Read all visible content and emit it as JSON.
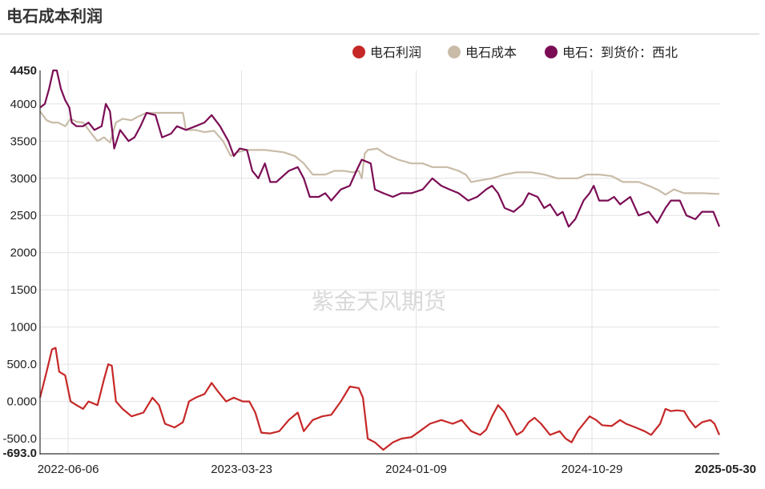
{
  "header": {
    "title": "电石成本利润"
  },
  "watermark": "紫金天风期货",
  "chart_data": {
    "type": "line",
    "title": "电石成本利润",
    "x_tick_labels": [
      "2022-06-06",
      "2023-03-23",
      "2024-01-09",
      "2024-10-29",
      "2025-05-30"
    ],
    "y_tick_labels": [
      "4450",
      "4000",
      "3500",
      "3000",
      "2500",
      "2000",
      "1500",
      "1000",
      "500.0",
      "0.000",
      "-500.0",
      "-693.0"
    ],
    "ylim": [
      -693,
      4450
    ],
    "xlim": [
      "2022-04-20",
      "2025-05-30"
    ],
    "grid": true,
    "legend_position": "top-right",
    "series": [
      {
        "name": "电石利润",
        "color": "#c62828",
        "points": [
          [
            "2022-04-20",
            50
          ],
          [
            "2022-05-01",
            400
          ],
          [
            "2022-05-10",
            700
          ],
          [
            "2022-05-16",
            720
          ],
          [
            "2022-05-22",
            400
          ],
          [
            "2022-06-01",
            350
          ],
          [
            "2022-06-10",
            0
          ],
          [
            "2022-06-20",
            -50
          ],
          [
            "2022-07-01",
            -100
          ],
          [
            "2022-07-10",
            0
          ],
          [
            "2022-07-25",
            -50
          ],
          [
            "2022-08-05",
            300
          ],
          [
            "2022-08-12",
            500
          ],
          [
            "2022-08-18",
            480
          ],
          [
            "2022-08-25",
            0
          ],
          [
            "2022-09-05",
            -100
          ],
          [
            "2022-09-20",
            -200
          ],
          [
            "2022-10-10",
            -150
          ],
          [
            "2022-10-25",
            50
          ],
          [
            "2022-11-05",
            -50
          ],
          [
            "2022-11-15",
            -300
          ],
          [
            "2022-12-01",
            -350
          ],
          [
            "2022-12-15",
            -280
          ],
          [
            "2022-12-25",
            0
          ],
          [
            "2023-01-05",
            50
          ],
          [
            "2023-01-20",
            100
          ],
          [
            "2023-02-01",
            250
          ],
          [
            "2023-02-10",
            150
          ],
          [
            "2023-02-25",
            0
          ],
          [
            "2023-03-10",
            50
          ],
          [
            "2023-03-25",
            0
          ],
          [
            "2023-04-05",
            0
          ],
          [
            "2023-04-15",
            -150
          ],
          [
            "2023-04-25",
            -420
          ],
          [
            "2023-05-10",
            -430
          ],
          [
            "2023-05-25",
            -400
          ],
          [
            "2023-06-10",
            -250
          ],
          [
            "2023-06-25",
            -150
          ],
          [
            "2023-07-05",
            -400
          ],
          [
            "2023-07-20",
            -250
          ],
          [
            "2023-08-05",
            -200
          ],
          [
            "2023-08-20",
            -180
          ],
          [
            "2023-09-05",
            0
          ],
          [
            "2023-09-20",
            200
          ],
          [
            "2023-10-05",
            180
          ],
          [
            "2023-10-12",
            50
          ],
          [
            "2023-10-20",
            -500
          ],
          [
            "2023-11-01",
            -550
          ],
          [
            "2023-11-15",
            -650
          ],
          [
            "2023-12-01",
            -550
          ],
          [
            "2023-12-15",
            -500
          ],
          [
            "2024-01-01",
            -480
          ],
          [
            "2024-01-15",
            -400
          ],
          [
            "2024-02-01",
            -300
          ],
          [
            "2024-02-20",
            -250
          ],
          [
            "2024-03-10",
            -300
          ],
          [
            "2024-03-25",
            -250
          ],
          [
            "2024-04-10",
            -400
          ],
          [
            "2024-04-25",
            -450
          ],
          [
            "2024-05-05",
            -380
          ],
          [
            "2024-05-15",
            -200
          ],
          [
            "2024-05-25",
            -50
          ],
          [
            "2024-06-05",
            -150
          ],
          [
            "2024-06-15",
            -300
          ],
          [
            "2024-06-25",
            -450
          ],
          [
            "2024-07-05",
            -400
          ],
          [
            "2024-07-15",
            -280
          ],
          [
            "2024-07-25",
            -220
          ],
          [
            "2024-08-05",
            -300
          ],
          [
            "2024-08-20",
            -450
          ],
          [
            "2024-09-05",
            -400
          ],
          [
            "2024-09-15",
            -500
          ],
          [
            "2024-09-25",
            -550
          ],
          [
            "2024-10-05",
            -400
          ],
          [
            "2024-10-15",
            -300
          ],
          [
            "2024-10-25",
            -200
          ],
          [
            "2024-11-05",
            -250
          ],
          [
            "2024-11-15",
            -320
          ],
          [
            "2024-12-01",
            -330
          ],
          [
            "2024-12-15",
            -250
          ],
          [
            "2024-12-25",
            -300
          ],
          [
            "2025-01-10",
            -350
          ],
          [
            "2025-01-25",
            -400
          ],
          [
            "2025-02-05",
            -450
          ],
          [
            "2025-02-20",
            -300
          ],
          [
            "2025-03-01",
            -100
          ],
          [
            "2025-03-10",
            -130
          ],
          [
            "2025-03-20",
            -120
          ],
          [
            "2025-04-01",
            -130
          ],
          [
            "2025-04-10",
            -250
          ],
          [
            "2025-04-20",
            -350
          ],
          [
            "2025-05-01",
            -280
          ],
          [
            "2025-05-15",
            -250
          ],
          [
            "2025-05-22",
            -300
          ],
          [
            "2025-05-30",
            -450
          ]
        ]
      },
      {
        "name": "电石成本",
        "color": "#c8bca8",
        "points": [
          [
            "2022-04-20",
            3900
          ],
          [
            "2022-05-01",
            3780
          ],
          [
            "2022-05-10",
            3750
          ],
          [
            "2022-05-20",
            3750
          ],
          [
            "2022-06-01",
            3700
          ],
          [
            "2022-06-10",
            3800
          ],
          [
            "2022-06-20",
            3760
          ],
          [
            "2022-07-01",
            3750
          ],
          [
            "2022-07-15",
            3600
          ],
          [
            "2022-07-25",
            3500
          ],
          [
            "2022-08-05",
            3550
          ],
          [
            "2022-08-15",
            3480
          ],
          [
            "2022-08-25",
            3750
          ],
          [
            "2022-09-05",
            3800
          ],
          [
            "2022-09-20",
            3780
          ],
          [
            "2022-10-01",
            3830
          ],
          [
            "2022-10-15",
            3880
          ],
          [
            "2022-11-01",
            3880
          ],
          [
            "2022-11-20",
            3880
          ],
          [
            "2022-12-05",
            3880
          ],
          [
            "2022-12-15",
            3880
          ],
          [
            "2022-12-20",
            3650
          ],
          [
            "2023-01-05",
            3650
          ],
          [
            "2023-01-20",
            3620
          ],
          [
            "2023-02-05",
            3640
          ],
          [
            "2023-02-20",
            3500
          ],
          [
            "2023-03-05",
            3300
          ],
          [
            "2023-03-15",
            3350
          ],
          [
            "2023-04-01",
            3380
          ],
          [
            "2023-05-01",
            3380
          ],
          [
            "2023-06-01",
            3350
          ],
          [
            "2023-06-20",
            3300
          ],
          [
            "2023-07-05",
            3200
          ],
          [
            "2023-07-20",
            3050
          ],
          [
            "2023-08-10",
            3050
          ],
          [
            "2023-08-25",
            3100
          ],
          [
            "2023-09-10",
            3100
          ],
          [
            "2023-09-25",
            3080
          ],
          [
            "2023-10-05",
            3100
          ],
          [
            "2023-10-10",
            3000
          ],
          [
            "2023-10-15",
            3330
          ],
          [
            "2023-10-20",
            3380
          ],
          [
            "2023-11-05",
            3400
          ],
          [
            "2023-11-20",
            3320
          ],
          [
            "2023-12-10",
            3250
          ],
          [
            "2024-01-01",
            3200
          ],
          [
            "2024-01-20",
            3200
          ],
          [
            "2024-02-05",
            3150
          ],
          [
            "2024-03-01",
            3150
          ],
          [
            "2024-03-20",
            3100
          ],
          [
            "2024-04-01",
            3050
          ],
          [
            "2024-04-10",
            2950
          ],
          [
            "2024-05-01",
            2980
          ],
          [
            "2024-05-15",
            3000
          ],
          [
            "2024-06-05",
            3050
          ],
          [
            "2024-06-25",
            3080
          ],
          [
            "2024-07-20",
            3080
          ],
          [
            "2024-08-10",
            3050
          ],
          [
            "2024-09-01",
            3000
          ],
          [
            "2024-09-20",
            3000
          ],
          [
            "2024-10-05",
            3000
          ],
          [
            "2024-10-20",
            3050
          ],
          [
            "2024-11-10",
            3050
          ],
          [
            "2024-12-01",
            3030
          ],
          [
            "2024-12-20",
            2950
          ],
          [
            "2025-01-15",
            2950
          ],
          [
            "2025-02-01",
            2900
          ],
          [
            "2025-02-15",
            2850
          ],
          [
            "2025-03-01",
            2780
          ],
          [
            "2025-03-15",
            2850
          ],
          [
            "2025-04-01",
            2800
          ],
          [
            "2025-05-01",
            2800
          ],
          [
            "2025-05-30",
            2790
          ]
        ]
      },
      {
        "name": "电石：到货价：西北",
        "color": "#7b0d55",
        "points": [
          [
            "2022-04-20",
            3950
          ],
          [
            "2022-04-28",
            4000
          ],
          [
            "2022-05-05",
            4200
          ],
          [
            "2022-05-12",
            4450
          ],
          [
            "2022-05-18",
            4450
          ],
          [
            "2022-05-25",
            4200
          ],
          [
            "2022-06-01",
            4050
          ],
          [
            "2022-06-08",
            3950
          ],
          [
            "2022-06-12",
            3750
          ],
          [
            "2022-06-20",
            3700
          ],
          [
            "2022-07-01",
            3700
          ],
          [
            "2022-07-10",
            3750
          ],
          [
            "2022-07-20",
            3650
          ],
          [
            "2022-08-01",
            3700
          ],
          [
            "2022-08-08",
            4000
          ],
          [
            "2022-08-15",
            3900
          ],
          [
            "2022-08-22",
            3400
          ],
          [
            "2022-09-01",
            3650
          ],
          [
            "2022-09-15",
            3500
          ],
          [
            "2022-09-25",
            3550
          ],
          [
            "2022-10-05",
            3700
          ],
          [
            "2022-10-15",
            3880
          ],
          [
            "2022-10-30",
            3850
          ],
          [
            "2022-11-10",
            3550
          ],
          [
            "2022-11-25",
            3600
          ],
          [
            "2022-12-05",
            3700
          ],
          [
            "2022-12-20",
            3650
          ],
          [
            "2023-01-05",
            3700
          ],
          [
            "2023-01-20",
            3750
          ],
          [
            "2023-02-01",
            3850
          ],
          [
            "2023-02-15",
            3700
          ],
          [
            "2023-03-01",
            3500
          ],
          [
            "2023-03-10",
            3300
          ],
          [
            "2023-03-20",
            3400
          ],
          [
            "2023-04-01",
            3380
          ],
          [
            "2023-04-10",
            3100
          ],
          [
            "2023-04-20",
            3000
          ],
          [
            "2023-05-01",
            3200
          ],
          [
            "2023-05-10",
            2950
          ],
          [
            "2023-05-20",
            2950
          ],
          [
            "2023-06-10",
            3100
          ],
          [
            "2023-06-25",
            3150
          ],
          [
            "2023-07-05",
            3000
          ],
          [
            "2023-07-15",
            2750
          ],
          [
            "2023-07-30",
            2750
          ],
          [
            "2023-08-10",
            2800
          ],
          [
            "2023-08-20",
            2700
          ],
          [
            "2023-09-05",
            2850
          ],
          [
            "2023-09-20",
            2900
          ],
          [
            "2023-10-01",
            3100
          ],
          [
            "2023-10-10",
            3250
          ],
          [
            "2023-10-25",
            3200
          ],
          [
            "2023-11-01",
            2850
          ],
          [
            "2023-11-15",
            2800
          ],
          [
            "2023-12-01",
            2750
          ],
          [
            "2023-12-15",
            2800
          ],
          [
            "2024-01-01",
            2800
          ],
          [
            "2024-01-20",
            2850
          ],
          [
            "2024-02-05",
            3000
          ],
          [
            "2024-02-20",
            2900
          ],
          [
            "2024-03-05",
            2850
          ],
          [
            "2024-03-20",
            2800
          ],
          [
            "2024-04-05",
            2700
          ],
          [
            "2024-04-20",
            2750
          ],
          [
            "2024-05-05",
            2850
          ],
          [
            "2024-05-15",
            2900
          ],
          [
            "2024-05-25",
            2800
          ],
          [
            "2024-06-05",
            2600
          ],
          [
            "2024-06-20",
            2550
          ],
          [
            "2024-07-05",
            2650
          ],
          [
            "2024-07-15",
            2800
          ],
          [
            "2024-07-30",
            2750
          ],
          [
            "2024-08-10",
            2600
          ],
          [
            "2024-08-20",
            2650
          ],
          [
            "2024-09-01",
            2500
          ],
          [
            "2024-09-10",
            2550
          ],
          [
            "2024-09-20",
            2350
          ],
          [
            "2024-10-01",
            2450
          ],
          [
            "2024-10-15",
            2700
          ],
          [
            "2024-10-25",
            2800
          ],
          [
            "2024-11-01",
            2900
          ],
          [
            "2024-11-10",
            2700
          ],
          [
            "2024-11-25",
            2700
          ],
          [
            "2024-12-05",
            2750
          ],
          [
            "2024-12-15",
            2650
          ],
          [
            "2025-01-01",
            2750
          ],
          [
            "2025-01-15",
            2500
          ],
          [
            "2025-02-01",
            2550
          ],
          [
            "2025-02-15",
            2400
          ],
          [
            "2025-03-01",
            2600
          ],
          [
            "2025-03-10",
            2700
          ],
          [
            "2025-03-25",
            2700
          ],
          [
            "2025-04-05",
            2500
          ],
          [
            "2025-04-20",
            2450
          ],
          [
            "2025-05-01",
            2550
          ],
          [
            "2025-05-20",
            2550
          ],
          [
            "2025-05-30",
            2350
          ]
        ]
      }
    ]
  }
}
